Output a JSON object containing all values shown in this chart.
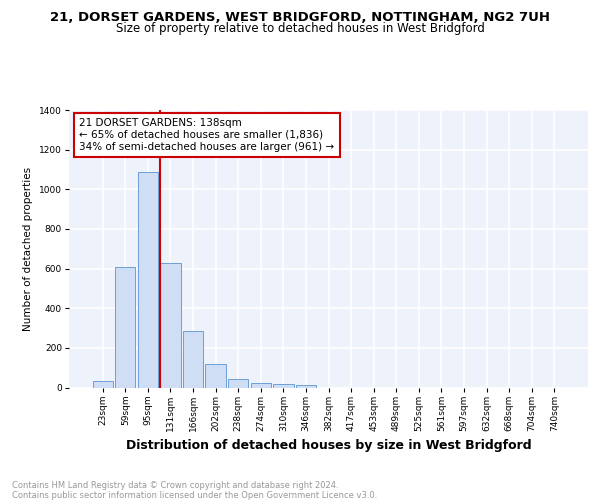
{
  "title": "21, DORSET GARDENS, WEST BRIDGFORD, NOTTINGHAM, NG2 7UH",
  "subtitle": "Size of property relative to detached houses in West Bridgford",
  "xlabel": "Distribution of detached houses by size in West Bridgford",
  "ylabel": "Number of detached properties",
  "bin_labels": [
    "23sqm",
    "59sqm",
    "95sqm",
    "131sqm",
    "166sqm",
    "202sqm",
    "238sqm",
    "274sqm",
    "310sqm",
    "346sqm",
    "382sqm",
    "417sqm",
    "453sqm",
    "489sqm",
    "525sqm",
    "561sqm",
    "597sqm",
    "632sqm",
    "668sqm",
    "704sqm",
    "740sqm"
  ],
  "bar_heights": [
    35,
    610,
    1085,
    630,
    285,
    120,
    45,
    25,
    20,
    15,
    0,
    0,
    0,
    0,
    0,
    0,
    0,
    0,
    0,
    0,
    0
  ],
  "bar_color": "#cfddf5",
  "bar_edge_color": "#6a9fd8",
  "vline_x_idx": 3,
  "vline_color": "#cc0000",
  "ann_line1": "21 DORSET GARDENS: 138sqm",
  "ann_line2": "← 65% of detached houses are smaller (1,836)",
  "ann_line3": "34% of semi-detached houses are larger (961) →",
  "annotation_box_color": "#cc0000",
  "ylim": [
    0,
    1400
  ],
  "yticks": [
    0,
    200,
    400,
    600,
    800,
    1000,
    1200,
    1400
  ],
  "bg_color": "#eef2fb",
  "grid_color": "#ffffff",
  "footer_text": "Contains HM Land Registry data © Crown copyright and database right 2024.\nContains public sector information licensed under the Open Government Licence v3.0.",
  "title_fontsize": 9.5,
  "subtitle_fontsize": 8.5,
  "xlabel_fontsize": 9,
  "ylabel_fontsize": 7.5,
  "tick_fontsize": 6.5,
  "annotation_fontsize": 7.5,
  "footer_fontsize": 6.0
}
